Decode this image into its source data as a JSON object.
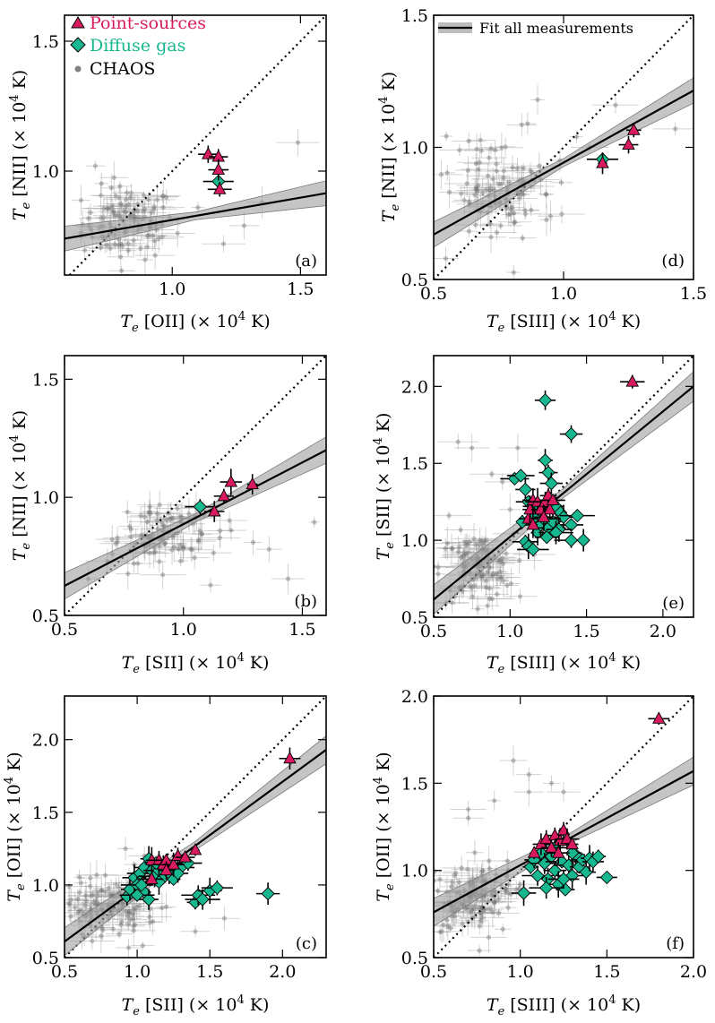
{
  "legend": {
    "point_sources": {
      "label": "Point-sources",
      "color": "#d81b60"
    },
    "diffuse_gas": {
      "label": "Diffuse gas",
      "color": "#17b890"
    },
    "chaos": {
      "label": "CHAOS",
      "color": "#808080"
    },
    "fit": {
      "label": "Fit all measurements"
    }
  },
  "chart_data": [
    {
      "id": "a",
      "type": "scatter",
      "panel_label": "(a)",
      "xlabel": "T_e [OII] (× 10^4 K)",
      "ylabel": "T_e [NII] (× 10^4 K)",
      "xlim": [
        0.58,
        1.6
      ],
      "ylim": [
        0.6,
        1.6
      ],
      "xticks": [
        1.0,
        1.5
      ],
      "yticks": [
        1.0,
        1.5
      ],
      "xtick_labels": [
        "1.0",
        "1.5"
      ],
      "ytick_labels": [
        "1.0",
        "1.5"
      ],
      "fit": {
        "x0": 0.58,
        "y0": 0.74,
        "x1": 1.6,
        "y1": 0.915,
        "band": 0.03
      },
      "point_sources": [
        [
          1.14,
          1.065
        ],
        [
          1.18,
          1.055
        ],
        [
          1.18,
          1.005
        ],
        [
          1.185,
          0.93
        ]
      ],
      "diffuse_gas": [
        [
          1.18,
          0.96
        ]
      ],
      "chaos_cloud": {
        "cx": 0.83,
        "cy": 0.8,
        "sx": 0.09,
        "sy": 0.07,
        "n": 110
      },
      "chaos_outliers": [
        [
          1.49,
          1.11
        ],
        [
          1.28,
          0.79
        ],
        [
          1.35,
          0.88
        ],
        [
          1.2,
          0.72
        ],
        [
          0.7,
          1.02
        ],
        [
          1.1,
          0.86
        ]
      ]
    },
    {
      "id": "d",
      "type": "scatter",
      "panel_label": "(d)",
      "xlabel": "T_e [SIII] (× 10^4 K)",
      "ylabel": "T_e [NII] (× 10^4 K)",
      "xlim": [
        0.5,
        1.5
      ],
      "ylim": [
        0.5,
        1.5
      ],
      "xticks": [
        0.5,
        1.0,
        1.5
      ],
      "yticks": [
        0.5,
        1.0,
        1.5
      ],
      "xtick_labels": [
        "0.5",
        "1.0",
        "1.5"
      ],
      "ytick_labels": [
        "0.5",
        "1.0",
        "1.5"
      ],
      "fit": {
        "x0": 0.5,
        "y0": 0.67,
        "x1": 1.5,
        "y1": 1.215,
        "band": 0.03
      },
      "point_sources": [
        [
          1.15,
          0.94
        ],
        [
          1.25,
          1.01
        ],
        [
          1.27,
          1.065
        ]
      ],
      "diffuse_gas": [
        [
          1.15,
          0.955
        ]
      ],
      "chaos_cloud": {
        "cx": 0.76,
        "cy": 0.84,
        "sx": 0.1,
        "sy": 0.09,
        "n": 110
      },
      "chaos_outliers": [
        [
          1.2,
          1.16
        ],
        [
          0.9,
          1.18
        ],
        [
          1.05,
          1.04
        ],
        [
          1.43,
          1.07
        ],
        [
          0.95,
          0.74
        ],
        [
          1.1,
          1.0
        ]
      ]
    },
    {
      "id": "b",
      "type": "scatter",
      "panel_label": "(b)",
      "xlabel": "T_e [SII] (× 10^4 K)",
      "ylabel": "T_e [NII] (× 10^4 K)",
      "xlim": [
        0.5,
        1.6
      ],
      "ylim": [
        0.5,
        1.6
      ],
      "xticks": [
        0.5,
        1.0,
        1.5
      ],
      "yticks": [
        0.5,
        1.0,
        1.5
      ],
      "xtick_labels": [
        "0.5",
        "1.0",
        "1.5"
      ],
      "ytick_labels": [
        "0.5",
        "1.0",
        "1.5"
      ],
      "fit": {
        "x0": 0.5,
        "y0": 0.625,
        "x1": 1.6,
        "y1": 1.2,
        "band": 0.035
      },
      "point_sources": [
        [
          1.13,
          0.94
        ],
        [
          1.17,
          1.005
        ],
        [
          1.2,
          1.065
        ],
        [
          1.29,
          1.055
        ]
      ],
      "diffuse_gas": [
        [
          1.07,
          0.96
        ]
      ],
      "chaos_cloud": {
        "cx": 0.9,
        "cy": 0.84,
        "sx": 0.12,
        "sy": 0.08,
        "n": 100
      },
      "chaos_outliers": [
        [
          1.55,
          0.895
        ],
        [
          1.36,
          0.78
        ],
        [
          1.44,
          0.655
        ],
        [
          0.68,
          0.73
        ],
        [
          0.6,
          0.655
        ],
        [
          1.2,
          0.86
        ]
      ]
    },
    {
      "id": "e",
      "type": "scatter",
      "panel_label": "(e)",
      "xlabel": "T_e [SIII] (× 10^4 K)",
      "ylabel": "T_e [SII] (× 10^4 K)",
      "xlim": [
        0.5,
        2.2
      ],
      "ylim": [
        0.5,
        2.2
      ],
      "xticks": [
        0.5,
        1.0,
        1.5,
        2.0
      ],
      "yticks": [
        0.5,
        1.0,
        1.5,
        2.0
      ],
      "xtick_labels": [
        "0.5",
        "1.0",
        "1.5",
        "2.0"
      ],
      "ytick_labels": [
        "0.5",
        "1.0",
        "1.5",
        "2.0"
      ],
      "fit": {
        "x0": 0.5,
        "y0": 0.615,
        "x1": 2.2,
        "y1": 2.0,
        "band": 0.06
      },
      "point_sources": [
        [
          1.12,
          1.14
        ],
        [
          1.13,
          1.2
        ],
        [
          1.15,
          1.26
        ],
        [
          1.18,
          1.25
        ],
        [
          1.2,
          1.2
        ],
        [
          1.23,
          1.25
        ],
        [
          1.25,
          1.29
        ],
        [
          1.26,
          1.2
        ],
        [
          1.28,
          1.26
        ],
        [
          1.15,
          1.1
        ],
        [
          1.22,
          1.15
        ],
        [
          1.8,
          2.03
        ]
      ],
      "diffuse_gas": [
        [
          1.03,
          1.4
        ],
        [
          1.07,
          1.42
        ],
        [
          1.1,
          1.33
        ],
        [
          1.12,
          1.25
        ],
        [
          1.15,
          1.22
        ],
        [
          1.23,
          1.91
        ],
        [
          1.23,
          1.52
        ],
        [
          1.25,
          1.44
        ],
        [
          1.27,
          1.37
        ],
        [
          1.4,
          1.69
        ],
        [
          1.3,
          1.22
        ],
        [
          1.33,
          1.18
        ],
        [
          1.35,
          1.15
        ],
        [
          1.4,
          1.1
        ],
        [
          1.44,
          1.16
        ],
        [
          1.4,
          1.0
        ],
        [
          1.48,
          1.0
        ],
        [
          1.1,
          0.99
        ],
        [
          1.12,
          0.96
        ],
        [
          1.15,
          0.94
        ],
        [
          1.18,
          1.05
        ],
        [
          1.2,
          1.1
        ],
        [
          1.25,
          1.08
        ],
        [
          1.28,
          1.12
        ],
        [
          1.32,
          1.07
        ],
        [
          1.16,
          1.15
        ],
        [
          1.3,
          1.05
        ],
        [
          1.22,
          1.14
        ],
        [
          1.08,
          1.12
        ],
        [
          1.24,
          1.02
        ]
      ],
      "chaos_cloud": {
        "cx": 0.78,
        "cy": 0.82,
        "sx": 0.12,
        "sy": 0.11,
        "n": 110
      },
      "chaos_outliers": [
        [
          0.66,
          1.64
        ],
        [
          0.75,
          1.6
        ],
        [
          0.95,
          1.38
        ],
        [
          0.88,
          1.43
        ],
        [
          1.05,
          1.6
        ],
        [
          0.6,
          1.16
        ],
        [
          1.0,
          1.2
        ]
      ]
    },
    {
      "id": "c",
      "type": "scatter",
      "panel_label": "(c)",
      "xlabel": "T_e [SII] (× 10^4 K)",
      "ylabel": "T_e [OII] (× 10^4 K)",
      "xlim": [
        0.5,
        2.3
      ],
      "ylim": [
        0.5,
        2.3
      ],
      "xticks": [
        0.5,
        1.0,
        1.5,
        2.0
      ],
      "yticks": [
        0.5,
        1.0,
        1.5,
        2.0
      ],
      "xtick_labels": [
        "0.5",
        "1.0",
        "1.5",
        "2.0"
      ],
      "ytick_labels": [
        "0.5",
        "1.0",
        "1.5",
        "2.0"
      ],
      "fit": {
        "x0": 0.5,
        "y0": 0.61,
        "x1": 2.3,
        "y1": 1.93,
        "band": 0.06
      },
      "point_sources": [
        [
          1.1,
          1.04
        ],
        [
          1.1,
          1.17
        ],
        [
          1.15,
          1.17
        ],
        [
          1.18,
          1.14
        ],
        [
          1.2,
          1.17
        ],
        [
          1.25,
          1.14
        ],
        [
          1.28,
          1.2
        ],
        [
          1.33,
          1.19
        ],
        [
          1.4,
          1.24
        ],
        [
          1.2,
          1.1
        ],
        [
          2.05,
          1.87
        ]
      ],
      "diffuse_gas": [
        [
          0.93,
          0.92
        ],
        [
          0.95,
          0.97
        ],
        [
          0.98,
          1.05
        ],
        [
          1.0,
          1.0
        ],
        [
          1.02,
          1.08
        ],
        [
          1.05,
          1.12
        ],
        [
          1.05,
          0.95
        ],
        [
          1.08,
          1.18
        ],
        [
          1.1,
          1.1
        ],
        [
          1.12,
          1.06
        ],
        [
          1.15,
          1.1
        ],
        [
          1.18,
          1.05
        ],
        [
          1.22,
          1.08
        ],
        [
          1.25,
          1.04
        ],
        [
          1.3,
          1.12
        ],
        [
          1.35,
          1.15
        ],
        [
          1.4,
          0.88
        ],
        [
          1.42,
          0.93
        ],
        [
          1.45,
          0.9
        ],
        [
          1.5,
          0.96
        ],
        [
          1.55,
          0.98
        ],
        [
          1.9,
          0.94
        ],
        [
          1.03,
          1.0
        ],
        [
          1.15,
          1.02
        ],
        [
          1.08,
          0.9
        ],
        [
          1.13,
          1.15
        ],
        [
          1.28,
          1.08
        ],
        [
          1.0,
          0.93
        ]
      ],
      "chaos_cloud": {
        "cx": 0.82,
        "cy": 0.83,
        "sx": 0.15,
        "sy": 0.1,
        "n": 120
      },
      "chaos_outliers": [
        [
          0.92,
          1.25
        ],
        [
          1.05,
          1.2
        ],
        [
          0.98,
          1.14
        ],
        [
          1.4,
          0.68
        ],
        [
          1.6,
          0.77
        ],
        [
          0.7,
          0.88
        ],
        [
          1.2,
          0.85
        ]
      ]
    },
    {
      "id": "f",
      "type": "scatter",
      "panel_label": "(f)",
      "xlabel": "T_e [SIII] (× 10^4 K)",
      "ylabel": "T_e [OII] (× 10^4 K)",
      "xlim": [
        0.5,
        2.0
      ],
      "ylim": [
        0.5,
        2.0
      ],
      "xticks": [
        0.5,
        1.0,
        1.5,
        2.0
      ],
      "yticks": [
        0.5,
        1.0,
        1.5,
        2.0
      ],
      "xtick_labels": [
        "0.5",
        "1.0",
        "1.5",
        "2.0"
      ],
      "ytick_labels": [
        "0.5",
        "1.0",
        "1.5",
        "2.0"
      ],
      "fit": {
        "x0": 0.5,
        "y0": 0.76,
        "x1": 2.0,
        "y1": 1.57,
        "band": 0.05
      },
      "point_sources": [
        [
          1.08,
          1.1
        ],
        [
          1.12,
          1.15
        ],
        [
          1.15,
          1.18
        ],
        [
          1.18,
          1.13
        ],
        [
          1.2,
          1.2
        ],
        [
          1.23,
          1.17
        ],
        [
          1.25,
          1.23
        ],
        [
          1.27,
          1.18
        ],
        [
          1.3,
          1.15
        ],
        [
          1.22,
          1.1
        ],
        [
          1.8,
          1.87
        ]
      ],
      "diffuse_gas": [
        [
          1.02,
          0.87
        ],
        [
          1.06,
          1.02
        ],
        [
          1.08,
          1.06
        ],
        [
          1.1,
          0.97
        ],
        [
          1.12,
          1.1
        ],
        [
          1.14,
          1.04
        ],
        [
          1.16,
          0.95
        ],
        [
          1.18,
          1.08
        ],
        [
          1.2,
          1.0
        ],
        [
          1.22,
          0.92
        ],
        [
          1.24,
          1.05
        ],
        [
          1.26,
          0.89
        ],
        [
          1.28,
          1.03
        ],
        [
          1.3,
          0.97
        ],
        [
          1.32,
          1.09
        ],
        [
          1.34,
          1.02
        ],
        [
          1.36,
          1.06
        ],
        [
          1.38,
          0.99
        ],
        [
          1.4,
          1.07
        ],
        [
          1.42,
          1.05
        ],
        [
          1.45,
          1.08
        ],
        [
          1.5,
          0.96
        ],
        [
          1.2,
          1.13
        ],
        [
          1.15,
          0.9
        ],
        [
          1.3,
          1.1
        ],
        [
          1.25,
          0.95
        ]
      ],
      "chaos_cloud": {
        "cx": 0.73,
        "cy": 0.84,
        "sx": 0.12,
        "sy": 0.1,
        "n": 140
      },
      "chaos_outliers": [
        [
          0.96,
          1.63
        ],
        [
          1.05,
          1.55
        ],
        [
          1.18,
          1.5
        ],
        [
          1.25,
          1.45
        ],
        [
          0.85,
          1.4
        ],
        [
          0.7,
          1.35
        ],
        [
          1.05,
          1.45
        ],
        [
          0.7,
          1.3
        ]
      ]
    }
  ]
}
